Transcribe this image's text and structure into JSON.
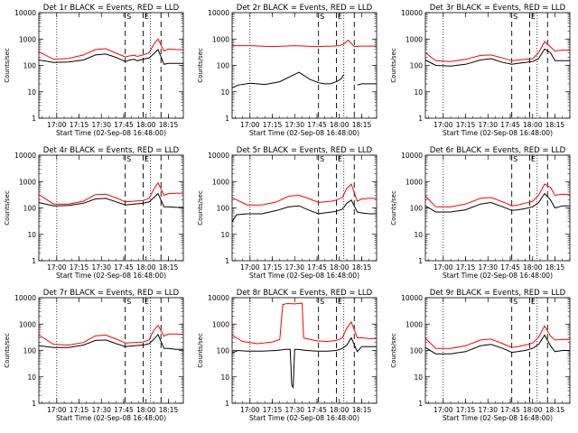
{
  "figure": {
    "common": {
      "xlabel": "Start Time (02-Sep-08 16:48:00)",
      "ylabel": "Counts/sec",
      "x_tick_labels": [
        "17:00",
        "17:15",
        "17:30",
        "17:45",
        "18:00",
        "18:15"
      ],
      "y_tick_labels": [
        "1",
        "10",
        "100",
        "1000",
        "10000"
      ],
      "event_line_color": "#000000",
      "lld_line_color": "#ff0000"
    }
  },
  "chart_data": [
    {
      "type": "line",
      "title": "Det 1r BLACK = Events, RED = LLD",
      "markers": [
        "S",
        "E"
      ],
      "x_start": "16:48",
      "x_end": "18:25",
      "x_tick_labels": [
        "17:00",
        "17:15",
        "17:30",
        "17:45",
        "18:00",
        "18:15"
      ],
      "ylabel": "Counts/sec",
      "yscale": "log",
      "ylim": [
        1,
        10000
      ],
      "y_tick_labels": [
        "1",
        "10",
        "100",
        "1000",
        "10000"
      ],
      "xlabel": "Start Time (02-Sep-08 16:48:00)",
      "series": [
        {
          "color": "#000000",
          "x": [
            "16:48",
            "16:58",
            "17:08",
            "17:18",
            "17:26",
            "17:33",
            "17:40",
            "17:46",
            "17:49",
            "17:52",
            "17:54",
            "17:58",
            "18:02",
            "18:05",
            "18:08",
            "18:12",
            "18:15",
            "18:20",
            "18:25"
          ],
          "y": [
            160,
            130,
            135,
            160,
            250,
            270,
            200,
            140,
            160,
            170,
            150,
            170,
            190,
            270,
            400,
            110,
            120,
            120,
            120
          ]
        },
        {
          "color": "#ff0000",
          "x": [
            "16:48",
            "16:58",
            "17:08",
            "17:18",
            "17:26",
            "17:33",
            "17:40",
            "17:46",
            "17:49",
            "17:52",
            "17:54",
            "17:58",
            "18:02",
            "18:05",
            "18:08",
            "18:12",
            "18:15",
            "18:20",
            "18:25"
          ],
          "y": [
            330,
            170,
            185,
            250,
            400,
            430,
            290,
            210,
            230,
            240,
            220,
            250,
            300,
            600,
            1000,
            350,
            420,
            400,
            390
          ]
        }
      ]
    },
    {
      "type": "line",
      "title": "Det 2r BLACK = Events, RED = LLD",
      "markers": [
        "S",
        "E"
      ],
      "x_start": "16:48",
      "x_end": "18:25",
      "x_tick_labels": [
        "17:00",
        "17:15",
        "17:30",
        "17:45",
        "18:00",
        "18:15"
      ],
      "ylabel": "Counts/sec",
      "yscale": "log",
      "ylim": [
        1,
        10000
      ],
      "y_tick_labels": [
        "1",
        "10",
        "100",
        "1000",
        "10000"
      ],
      "xlabel": "Start Time (02-Sep-08 16:48:00)",
      "series": [
        {
          "color": "#000000",
          "x": [
            "16:48",
            "16:52",
            "17:00",
            "17:10",
            "17:20",
            "17:28",
            "17:33",
            "17:40",
            "17:46",
            "17:50",
            "17:54",
            "17:58",
            "18:01",
            "18:03",
            "18:06",
            "18:08",
            "18:12",
            "18:15",
            "18:25"
          ],
          "y": [
            14,
            18,
            21,
            19,
            24,
            40,
            55,
            30,
            22,
            20,
            20,
            24,
            30,
            45,
            null,
            null,
            18,
            20,
            20
          ]
        },
        {
          "color": "#ff0000",
          "x": [
            "16:48",
            "17:00",
            "17:15",
            "17:30",
            "17:45",
            "17:55",
            "18:00",
            "18:03",
            "18:06",
            "18:10",
            "18:15",
            "18:25"
          ],
          "y": [
            560,
            560,
            520,
            560,
            520,
            540,
            560,
            650,
            900,
            520,
            540,
            540
          ]
        }
      ]
    },
    {
      "type": "line",
      "title": "Det 3r BLACK = Events, RED = LLD",
      "markers": [
        "S",
        "E"
      ],
      "x_start": "16:48",
      "x_end": "18:25",
      "x_tick_labels": [
        "17:00",
        "17:15",
        "17:30",
        "17:45",
        "18:00",
        "18:15"
      ],
      "ylabel": "Counts/sec",
      "yscale": "log",
      "ylim": [
        1,
        10000
      ],
      "y_tick_labels": [
        "1",
        "10",
        "100",
        "1000",
        "10000"
      ],
      "xlabel": "Start Time (02-Sep-08 16:48:00)",
      "series": [
        {
          "color": "#000000",
          "x": [
            "16:48",
            "16:55",
            "17:05",
            "17:15",
            "17:25",
            "17:32",
            "17:40",
            "17:46",
            "17:50",
            "17:55",
            "18:00",
            "18:04",
            "18:08",
            "18:12",
            "18:15",
            "18:20",
            "18:25"
          ],
          "y": [
            160,
            100,
            95,
            110,
            160,
            180,
            130,
            110,
            120,
            130,
            140,
            180,
            420,
            300,
            150,
            150,
            150
          ]
        },
        {
          "color": "#ff0000",
          "x": [
            "16:48",
            "16:55",
            "17:05",
            "17:15",
            "17:25",
            "17:32",
            "17:40",
            "17:46",
            "17:50",
            "17:55",
            "18:00",
            "18:04",
            "18:08",
            "18:12",
            "18:15",
            "18:20",
            "18:25"
          ],
          "y": [
            300,
            150,
            140,
            170,
            240,
            250,
            190,
            150,
            160,
            170,
            180,
            300,
            800,
            500,
            350,
            380,
            370
          ]
        }
      ]
    },
    {
      "type": "line",
      "title": "Det 4r BLACK = Events, RED = LLD",
      "markers": [
        "S",
        "E"
      ],
      "x_start": "16:48",
      "x_end": "18:25",
      "x_tick_labels": [
        "17:00",
        "17:15",
        "17:30",
        "17:45",
        "18:00",
        "18:15"
      ],
      "ylabel": "Counts/sec",
      "yscale": "log",
      "ylim": [
        1,
        10000
      ],
      "y_tick_labels": [
        "1",
        "10",
        "100",
        "1000",
        "10000"
      ],
      "xlabel": "Start Time (02-Sep-08 16:48:00)",
      "series": [
        {
          "color": "#000000",
          "x": [
            "16:48",
            "16:58",
            "17:08",
            "17:18",
            "17:26",
            "17:33",
            "17:40",
            "17:46",
            "17:52",
            "17:58",
            "18:02",
            "18:05",
            "18:08",
            "18:12",
            "18:15",
            "18:20",
            "18:25"
          ],
          "y": [
            160,
            120,
            125,
            150,
            220,
            230,
            170,
            130,
            140,
            150,
            170,
            240,
            350,
            110,
            110,
            105,
            105
          ]
        },
        {
          "color": "#ff0000",
          "x": [
            "16:48",
            "16:58",
            "17:08",
            "17:18",
            "17:26",
            "17:33",
            "17:40",
            "17:46",
            "17:52",
            "17:58",
            "18:02",
            "18:05",
            "18:08",
            "18:12",
            "18:15",
            "18:20",
            "18:25"
          ],
          "y": [
            320,
            140,
            140,
            180,
            320,
            330,
            240,
            170,
            180,
            190,
            230,
            500,
            900,
            300,
            350,
            360,
            360
          ]
        }
      ]
    },
    {
      "type": "line",
      "title": "Det 5r BLACK = Events, RED = LLD",
      "markers": [
        "S",
        "E"
      ],
      "x_start": "16:48",
      "x_end": "18:25",
      "x_tick_labels": [
        "17:00",
        "17:15",
        "17:30",
        "17:45",
        "18:00",
        "18:15"
      ],
      "ylabel": "Counts/sec",
      "yscale": "log",
      "ylim": [
        1,
        10000
      ],
      "y_tick_labels": [
        "1",
        "10",
        "100",
        "1000",
        "10000"
      ],
      "xlabel": "Start Time (02-Sep-08 16:48:00)",
      "series": [
        {
          "color": "#000000",
          "x": [
            "16:48",
            "16:51",
            "16:58",
            "17:08",
            "17:18",
            "17:26",
            "17:33",
            "17:40",
            "17:46",
            "17:50",
            "17:55",
            "17:58",
            "18:02",
            "18:05",
            "18:08",
            "18:12",
            "18:15",
            "18:20",
            "18:25"
          ],
          "y": [
            30,
            55,
            60,
            60,
            80,
            110,
            120,
            80,
            60,
            65,
            70,
            75,
            90,
            150,
            200,
            70,
            65,
            60,
            60
          ]
        },
        {
          "color": "#ff0000",
          "x": [
            "16:48",
            "16:58",
            "17:08",
            "17:18",
            "17:26",
            "17:33",
            "17:40",
            "17:46",
            "17:50",
            "17:55",
            "17:58",
            "18:02",
            "18:05",
            "18:08",
            "18:12",
            "18:15",
            "18:20",
            "18:25"
          ],
          "y": [
            250,
            130,
            130,
            170,
            280,
            300,
            220,
            160,
            170,
            180,
            200,
            250,
            550,
            800,
            180,
            220,
            230,
            230
          ]
        }
      ]
    },
    {
      "type": "line",
      "title": "Det 6r BLACK = Events, RED = LLD",
      "markers": [
        "S",
        "E"
      ],
      "x_start": "16:48",
      "x_end": "18:25",
      "x_tick_labels": [
        "17:00",
        "17:15",
        "17:30",
        "17:45",
        "18:00",
        "18:15"
      ],
      "ylabel": "Counts/sec",
      "yscale": "log",
      "ylim": [
        1,
        10000
      ],
      "y_tick_labels": [
        "1",
        "10",
        "100",
        "1000",
        "10000"
      ],
      "xlabel": "Start Time (02-Sep-08 16:48:00)",
      "series": [
        {
          "color": "#000000",
          "x": [
            "16:48",
            "16:55",
            "17:05",
            "17:15",
            "17:25",
            "17:32",
            "17:40",
            "17:46",
            "17:50",
            "17:55",
            "18:00",
            "18:04",
            "18:08",
            "18:12",
            "18:15",
            "18:20",
            "18:25"
          ],
          "y": [
            120,
            70,
            70,
            85,
            140,
            160,
            110,
            80,
            85,
            95,
            110,
            160,
            350,
            200,
            100,
            120,
            120
          ]
        },
        {
          "color": "#ff0000",
          "x": [
            "16:48",
            "16:55",
            "17:05",
            "17:15",
            "17:25",
            "17:32",
            "17:40",
            "17:46",
            "17:50",
            "17:55",
            "18:00",
            "18:04",
            "18:08",
            "18:12",
            "18:15",
            "18:20",
            "18:25"
          ],
          "y": [
            280,
            110,
            110,
            140,
            230,
            250,
            170,
            120,
            130,
            150,
            180,
            300,
            800,
            600,
            300,
            330,
            320
          ]
        }
      ]
    },
    {
      "type": "line",
      "title": "Det 7r BLACK = Events, RED = LLD",
      "markers": [
        "S",
        "E"
      ],
      "x_start": "16:48",
      "x_end": "18:25",
      "x_tick_labels": [
        "17:00",
        "17:15",
        "17:30",
        "17:45",
        "18:00",
        "18:15"
      ],
      "ylabel": "Counts/sec",
      "yscale": "log",
      "ylim": [
        1,
        10000
      ],
      "y_tick_labels": [
        "1",
        "10",
        "100",
        "1000",
        "10000"
      ],
      "xlabel": "Start Time (02-Sep-08 16:48:00)",
      "series": [
        {
          "color": "#000000",
          "x": [
            "16:48",
            "16:58",
            "17:08",
            "17:18",
            "17:26",
            "17:33",
            "17:40",
            "17:46",
            "17:52",
            "17:58",
            "18:02",
            "18:05",
            "18:08",
            "18:12",
            "18:15",
            "18:20",
            "18:25"
          ],
          "y": [
            150,
            130,
            130,
            160,
            240,
            250,
            180,
            140,
            150,
            160,
            180,
            260,
            400,
            120,
            120,
            110,
            110
          ]
        },
        {
          "color": "#ff0000",
          "x": [
            "16:48",
            "16:58",
            "17:08",
            "17:18",
            "17:26",
            "17:33",
            "17:40",
            "17:46",
            "17:52",
            "17:58",
            "18:02",
            "18:05",
            "18:08",
            "18:12",
            "18:15",
            "18:20",
            "18:25"
          ],
          "y": [
            380,
            170,
            160,
            200,
            360,
            380,
            270,
            190,
            200,
            210,
            250,
            560,
            900,
            350,
            420,
            420,
            410
          ]
        }
      ]
    },
    {
      "type": "line",
      "title": "Det 8r BLACK = Events, RED = LLD",
      "markers": [
        "S",
        "E"
      ],
      "x_start": "16:48",
      "x_end": "18:25",
      "x_tick_labels": [
        "17:00",
        "17:15",
        "17:30",
        "17:45",
        "18:00",
        "18:15"
      ],
      "ylabel": "Counts/sec",
      "yscale": "log",
      "ylim": [
        1,
        10000
      ],
      "y_tick_labels": [
        "1",
        "10",
        "100",
        "1000",
        "10000"
      ],
      "xlabel": "Start Time (02-Sep-08 16:48:00)",
      "series": [
        {
          "color": "#000000",
          "x": [
            "16:48",
            "16:52",
            "16:58",
            "17:08",
            "17:18",
            "17:24",
            "17:27",
            "17:28",
            "17:29",
            "17:30",
            "17:32",
            "17:38",
            "17:45",
            "17:52",
            "17:58",
            "18:02",
            "18:05",
            "18:08",
            "18:12",
            "18:15",
            "18:20",
            "18:25"
          ],
          "y": [
            80,
            100,
            95,
            95,
            100,
            110,
            110,
            5,
            4,
            110,
            110,
            100,
            95,
            95,
            100,
            120,
            160,
            300,
            90,
            140,
            140,
            140
          ]
        },
        {
          "color": "#ff0000",
          "x": [
            "16:48",
            "16:55",
            "17:05",
            "17:15",
            "17:20",
            "17:22",
            "17:25",
            "17:30",
            "17:35",
            "17:36",
            "17:38",
            "17:45",
            "17:52",
            "17:58",
            "18:02",
            "18:05",
            "18:08",
            "18:12",
            "18:15",
            "18:20",
            "18:25"
          ],
          "y": [
            380,
            220,
            180,
            210,
            260,
            5500,
            6000,
            5800,
            6200,
            300,
            280,
            230,
            220,
            240,
            300,
            700,
            1200,
            300,
            300,
            280,
            280
          ]
        }
      ]
    },
    {
      "type": "line",
      "title": "Det 9r BLACK = Events, RED = LLD",
      "markers": [
        "S",
        "E"
      ],
      "x_start": "16:48",
      "x_end": "18:25",
      "x_tick_labels": [
        "17:00",
        "17:15",
        "17:30",
        "17:45",
        "18:00",
        "18:15"
      ],
      "ylabel": "Counts/sec",
      "yscale": "log",
      "ylim": [
        1,
        10000
      ],
      "y_tick_labels": [
        "1",
        "10",
        "100",
        "1000",
        "10000"
      ],
      "xlabel": "Start Time (02-Sep-08 16:48:00)",
      "series": [
        {
          "color": "#000000",
          "x": [
            "16:48",
            "16:55",
            "17:05",
            "17:15",
            "17:25",
            "17:32",
            "17:40",
            "17:46",
            "17:50",
            "17:55",
            "18:00",
            "18:04",
            "18:08",
            "18:12",
            "18:15",
            "18:20",
            "18:25"
          ],
          "y": [
            130,
            75,
            75,
            90,
            150,
            170,
            120,
            85,
            90,
            100,
            120,
            170,
            380,
            150,
            90,
            100,
            100
          ]
        },
        {
          "color": "#ff0000",
          "x": [
            "16:48",
            "16:55",
            "17:05",
            "17:15",
            "17:25",
            "17:32",
            "17:40",
            "17:46",
            "17:50",
            "17:55",
            "18:00",
            "18:04",
            "18:08",
            "18:12",
            "18:15",
            "18:20",
            "18:25"
          ],
          "y": [
            290,
            120,
            120,
            150,
            250,
            270,
            180,
            130,
            140,
            160,
            190,
            320,
            850,
            350,
            250,
            260,
            260
          ]
        }
      ]
    }
  ]
}
